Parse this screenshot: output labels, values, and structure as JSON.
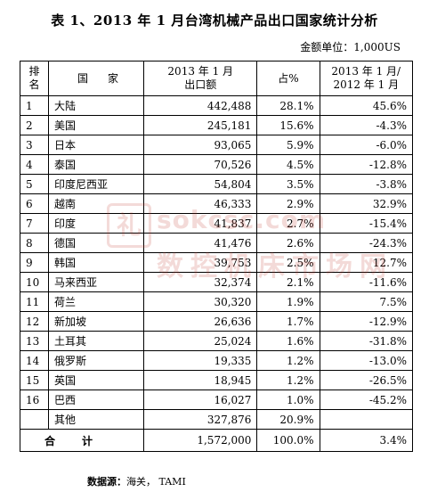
{
  "title": "表 1、2013 年 1 月台湾机械产品出口国家统计分析",
  "unit": "金额单位：1,000US",
  "headers": {
    "rank": "排\n名",
    "country": "国家",
    "amount": "2013 年 1 月\n出口额",
    "share": "占%",
    "change": "2013 年 1 月/\n2012 年 1 月"
  },
  "rows": [
    {
      "rank": "1",
      "country": "大陆",
      "amount": "442,488",
      "share": "28.1%",
      "change": "45.6%"
    },
    {
      "rank": "2",
      "country": "美国",
      "amount": "245,181",
      "share": "15.6%",
      "change": "-4.3%"
    },
    {
      "rank": "3",
      "country": "日本",
      "amount": "93,065",
      "share": "5.9%",
      "change": "-6.0%"
    },
    {
      "rank": "4",
      "country": "泰国",
      "amount": "70,526",
      "share": "4.5%",
      "change": "-12.8%"
    },
    {
      "rank": "5",
      "country": "印度尼西亚",
      "amount": "54,804",
      "share": "3.5%",
      "change": "-3.8%"
    },
    {
      "rank": "6",
      "country": "越南",
      "amount": "46,333",
      "share": "2.9%",
      "change": "32.9%"
    },
    {
      "rank": "7",
      "country": "印度",
      "amount": "41,837",
      "share": "2.7%",
      "change": "-15.4%"
    },
    {
      "rank": "8",
      "country": "德国",
      "amount": "41,476",
      "share": "2.6%",
      "change": "-24.3%"
    },
    {
      "rank": "9",
      "country": "韩国",
      "amount": "39,753",
      "share": "2.5%",
      "change": "12.7%"
    },
    {
      "rank": "10",
      "country": "马来西亚",
      "amount": "32,374",
      "share": "2.1%",
      "change": "-11.6%"
    },
    {
      "rank": "11",
      "country": "荷兰",
      "amount": "30,320",
      "share": "1.9%",
      "change": "7.5%"
    },
    {
      "rank": "12",
      "country": "新加坡",
      "amount": "26,636",
      "share": "1.7%",
      "change": "-12.9%"
    },
    {
      "rank": "13",
      "country": "土耳其",
      "amount": "25,024",
      "share": "1.6%",
      "change": "-31.8%"
    },
    {
      "rank": "14",
      "country": "俄罗斯",
      "amount": "19,335",
      "share": "1.2%",
      "change": "-13.0%"
    },
    {
      "rank": "15",
      "country": "英国",
      "amount": "18,945",
      "share": "1.2%",
      "change": "-26.5%"
    },
    {
      "rank": "16",
      "country": "巴西",
      "amount": "16,027",
      "share": "1.0%",
      "change": "-45.2%"
    },
    {
      "rank": "",
      "country": "其他",
      "amount": "327,876",
      "share": "20.9%",
      "change": ""
    }
  ],
  "total": {
    "label": "合计",
    "amount": "1,572,000",
    "share": "100.0%",
    "change": "3.4%"
  },
  "source": {
    "label": "数据源：",
    "value": "海关， TAMI"
  },
  "watermark": {
    "logo": "礼",
    "url": "sokcsc.com",
    "text": "数控机床市场网"
  }
}
